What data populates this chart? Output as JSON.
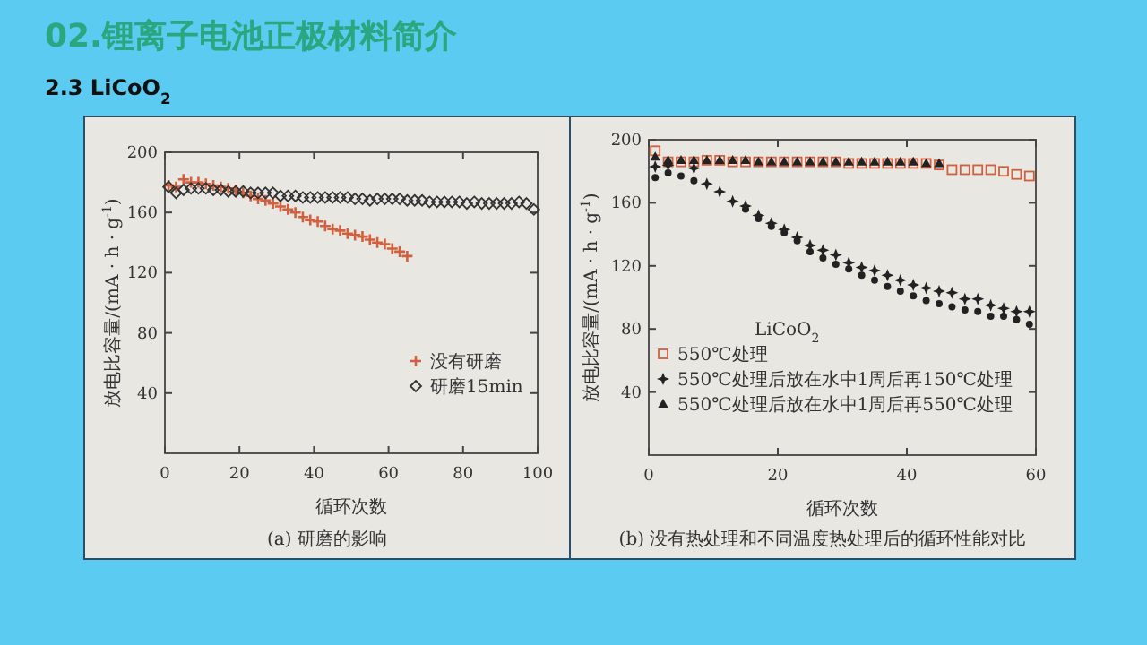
{
  "chart_data": [
    {
      "type": "other",
      "title": "02.锂离子电池正极材料简介",
      "subtitle": "2.3 LiCoO$_{2}$"
    },
    {
      "type": "scatter",
      "title": "(a) 研磨的影响",
      "xlabel": "循环次数",
      "ylabel": "放电比容量/(mA · h · g$^{-1}$)",
      "xlim": [
        0,
        100
      ],
      "ylim": [
        0,
        200
      ],
      "xticks": [
        0,
        20,
        40,
        60,
        80,
        100
      ],
      "yticks": [
        40,
        80,
        120,
        160,
        200
      ],
      "legend": "bottom right",
      "series": [
        {
          "name": "没有研磨",
          "color": "#d2603e",
          "marker": "cross",
          "x": [
            1,
            3,
            5,
            7,
            9,
            11,
            13,
            15,
            17,
            19,
            21,
            23,
            25,
            27,
            29,
            31,
            33,
            35,
            37,
            39,
            41,
            43,
            45,
            47,
            49,
            51,
            53,
            55,
            57,
            59,
            61,
            63,
            65
          ],
          "values": [
            178,
            177,
            182,
            180,
            180,
            179,
            178,
            177,
            176,
            175,
            173,
            171,
            169,
            168,
            166,
            164,
            162,
            160,
            157,
            155,
            154,
            151,
            149,
            148,
            146,
            145,
            144,
            142,
            140,
            139,
            136,
            134,
            131
          ]
        },
        {
          "name": "研磨15min",
          "color": "#333333",
          "marker": "diamond",
          "x": [
            1,
            3,
            5,
            7,
            9,
            11,
            13,
            15,
            17,
            19,
            21,
            23,
            25,
            27,
            29,
            31,
            33,
            35,
            37,
            39,
            41,
            43,
            45,
            47,
            49,
            51,
            53,
            55,
            57,
            59,
            61,
            63,
            65,
            67,
            69,
            71,
            73,
            75,
            77,
            79,
            81,
            83,
            85,
            87,
            89,
            91,
            93,
            95,
            97,
            99
          ],
          "values": [
            177,
            173,
            175,
            176,
            176,
            176,
            175,
            175,
            174,
            174,
            174,
            173,
            173,
            173,
            173,
            171,
            171,
            171,
            170,
            170,
            170,
            170,
            170,
            170,
            170,
            169,
            169,
            168,
            169,
            169,
            169,
            169,
            168,
            168,
            168,
            167,
            167,
            167,
            167,
            167,
            166,
            167,
            166,
            166,
            166,
            166,
            166,
            167,
            166,
            162
          ]
        }
      ]
    },
    {
      "type": "scatter",
      "title": "(b) 没有热处理和不同温度热处理后的循环性能对比",
      "xlabel": "循环次数",
      "ylabel": "放电比容量/(mA · h · g$^{-1}$)",
      "xlim": [
        0,
        60
      ],
      "ylim": [
        0,
        200
      ],
      "xticks": [
        0,
        20,
        40,
        60
      ],
      "yticks": [
        40,
        80,
        120,
        160,
        200
      ],
      "legend": "bottom left",
      "legend_title": "LiCoO$_{2}$",
      "series": [
        {
          "color": "#222222",
          "marker": "circle",
          "x": [
            1,
            3,
            5,
            7,
            15,
            17,
            19,
            21,
            23,
            25,
            27,
            29,
            31,
            33,
            35,
            37,
            39,
            41,
            43,
            45,
            47,
            49,
            51,
            53,
            55,
            57,
            59
          ],
          "values": [
            176,
            179,
            177,
            174,
            156,
            150,
            145,
            141,
            136,
            129,
            125,
            121,
            118,
            114,
            111,
            107,
            104,
            101,
            98,
            96,
            94,
            92,
            91,
            88,
            88,
            86,
            83
          ]
        },
        {
          "name": "550℃处理",
          "color": "#d2603e",
          "marker": "square",
          "x": [
            1,
            3,
            5,
            7,
            9,
            11,
            13,
            15,
            17,
            19,
            21,
            23,
            25,
            27,
            29,
            31,
            33,
            35,
            37,
            39,
            41,
            43,
            45,
            47,
            49,
            51,
            53,
            55,
            57,
            59
          ],
          "values": [
            193,
            186,
            186,
            186,
            187,
            187,
            186,
            186,
            186,
            186,
            186,
            186,
            186,
            186,
            186,
            185,
            185,
            185,
            185,
            185,
            185,
            185,
            184,
            181,
            181,
            181,
            181,
            180,
            178,
            177
          ]
        },
        {
          "name": "550℃处理后放在水中1周后再150℃处理",
          "color": "#222222",
          "marker": "star",
          "x": [
            1,
            3,
            7,
            9,
            11,
            13,
            15,
            17,
            19,
            21,
            23,
            25,
            27,
            29,
            31,
            33,
            35,
            37,
            39,
            41,
            43,
            45,
            47,
            49,
            51,
            53,
            55,
            57,
            59
          ],
          "values": [
            183,
            184,
            182,
            172,
            167,
            161,
            158,
            152,
            147,
            143,
            138,
            133,
            130,
            127,
            122,
            119,
            117,
            114,
            111,
            108,
            106,
            104,
            103,
            99,
            99,
            95,
            93,
            91,
            91
          ]
        },
        {
          "name": "550℃处理后放在水中1周后再550℃处理",
          "color": "#222222",
          "marker": "triangle",
          "x": [
            1,
            3,
            5,
            7,
            9,
            11,
            13,
            15,
            17,
            19,
            21,
            23,
            25,
            27,
            29,
            31,
            33,
            35,
            37,
            39,
            41,
            43,
            45
          ],
          "values": [
            189,
            187,
            187,
            187,
            187,
            187,
            187,
            187,
            186,
            186,
            186,
            186,
            186,
            186,
            186,
            186,
            186,
            186,
            186,
            186,
            186,
            185,
            185
          ]
        }
      ]
    }
  ]
}
